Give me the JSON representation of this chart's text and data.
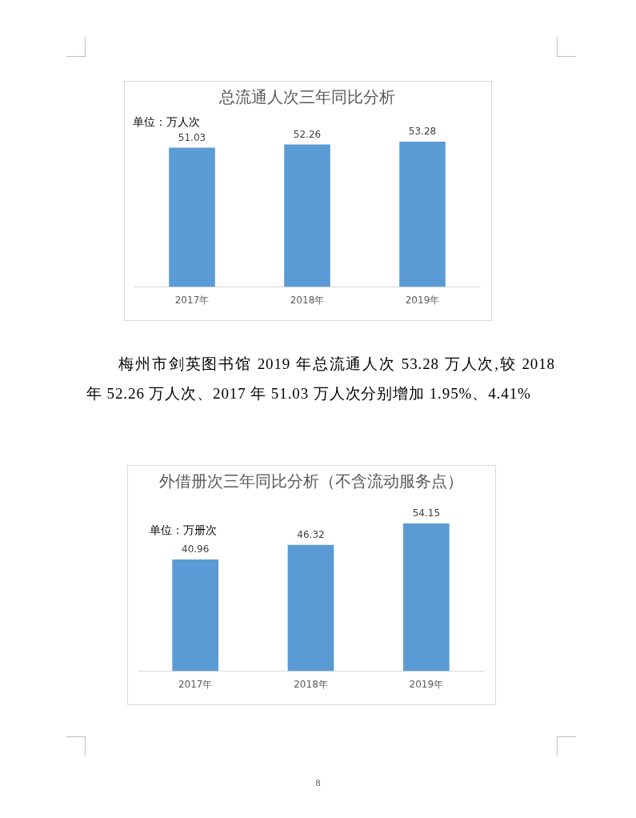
{
  "chart_data": [
    {
      "type": "bar",
      "title": "总流通人次三年同比分析",
      "annotations": [
        "单位：万人次",
        "梅州市剑英图书馆 2019 年总流通人次 53.28 万人次,较 2018 年 52.26 万人次、2017 年 51.03 万人次分别增加 1.95%、4.41%"
      ],
      "categories": [
        "2017年",
        "2018年",
        "2019年"
      ],
      "values": [
        51.03,
        52.26,
        53.28
      ],
      "color": "#5b9bd5",
      "data_labels": true,
      "tick_labels": "x"
    },
    {
      "type": "bar",
      "title": "外借册次三年同比分析（不含流动服务点）",
      "annotations": [
        "单位：万册次",
        "8"
      ],
      "categories": [
        "2017年",
        "2018年",
        "2019年"
      ],
      "values": [
        40.96,
        46.32,
        54.15
      ],
      "color": "#5b9bd5",
      "data_labels": true,
      "tick_labels": "x"
    }
  ]
}
